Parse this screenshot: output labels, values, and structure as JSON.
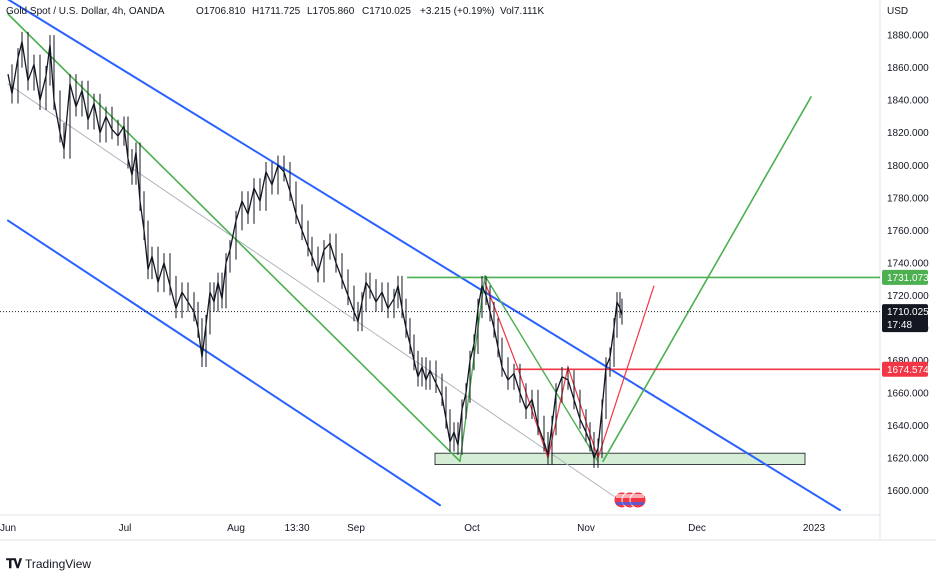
{
  "header": {
    "symbol": "Gold Spot / U.S. Dollar, 4h, OANDA",
    "open": "O1706.810",
    "high": "H1711.725",
    "low": "L1705.860",
    "close": "C1710.025",
    "change": "+3.215 (+0.19%)",
    "volume": "Vol7.111K",
    "currency": "USD"
  },
  "footer": {
    "brand": "TradingView"
  },
  "colors": {
    "candle": "#131722",
    "blue_channel": "#2962ff",
    "green_channel": "#4caf50",
    "red_line": "#f23645",
    "support_zone": "#d5ecd5",
    "dotted_price": "#131722"
  },
  "chart_data": {
    "type": "line",
    "title": "Gold Spot / U.S. Dollar, 4h, OANDA",
    "ylim": [
      1585,
      1893
    ],
    "xlim": [
      0,
      835
    ],
    "y_ticks": [
      1600,
      1620,
      1640,
      1660,
      1680,
      1700,
      1720,
      1740,
      1760,
      1780,
      1800,
      1820,
      1840,
      1860,
      1880
    ],
    "y_tick_labels": [
      "1600.000",
      "1620.000",
      "1640.000",
      "1660.000",
      "1680.000",
      "1700.000",
      "1720.000",
      "1740.000",
      "1760.000",
      "1780.000",
      "1800.000",
      "1820.000",
      "1840.000",
      "1860.000",
      "1880.000"
    ],
    "x_ticks": [
      {
        "x": 8,
        "label": "Jun"
      },
      {
        "x": 125,
        "label": "Jul"
      },
      {
        "x": 236,
        "label": "Aug"
      },
      {
        "x": 297,
        "label": "13:30"
      },
      {
        "x": 356,
        "label": "Sep"
      },
      {
        "x": 472,
        "label": "Oct"
      },
      {
        "x": 586,
        "label": "Nov"
      },
      {
        "x": 697,
        "label": "Dec"
      },
      {
        "x": 814,
        "label": "2023"
      }
    ],
    "price_series": {
      "name": "XAUUSD",
      "points": [
        [
          8,
          1856
        ],
        [
          12,
          1844
        ],
        [
          18,
          1866
        ],
        [
          22,
          1876
        ],
        [
          28,
          1852
        ],
        [
          34,
          1862
        ],
        [
          40,
          1840
        ],
        [
          46,
          1855
        ],
        [
          50,
          1874
        ],
        [
          54,
          1840
        ],
        [
          60,
          1820
        ],
        [
          64,
          1810
        ],
        [
          70,
          1850
        ],
        [
          76,
          1836
        ],
        [
          82,
          1846
        ],
        [
          88,
          1828
        ],
        [
          94,
          1838
        ],
        [
          100,
          1820
        ],
        [
          106,
          1830
        ],
        [
          112,
          1822
        ],
        [
          118,
          1818
        ],
        [
          124,
          1824
        ],
        [
          128,
          1804
        ],
        [
          132,
          1794
        ],
        [
          136,
          1808
        ],
        [
          140,
          1778
        ],
        [
          144,
          1760
        ],
        [
          148,
          1736
        ],
        [
          152,
          1744
        ],
        [
          158,
          1728
        ],
        [
          164,
          1740
        ],
        [
          170,
          1726
        ],
        [
          176,
          1712
        ],
        [
          182,
          1722
        ],
        [
          188,
          1716
        ],
        [
          194,
          1710
        ],
        [
          198,
          1700
        ],
        [
          202,
          1682
        ],
        [
          206,
          1702
        ],
        [
          210,
          1722
        ],
        [
          214,
          1716
        ],
        [
          218,
          1728
        ],
        [
          222,
          1718
        ],
        [
          226,
          1740
        ],
        [
          230,
          1748
        ],
        [
          236,
          1766
        ],
        [
          242,
          1778
        ],
        [
          248,
          1770
        ],
        [
          254,
          1786
        ],
        [
          260,
          1778
        ],
        [
          266,
          1796
        ],
        [
          272,
          1788
        ],
        [
          278,
          1800
        ],
        [
          284,
          1796
        ],
        [
          290,
          1784
        ],
        [
          296,
          1770
        ],
        [
          302,
          1760
        ],
        [
          308,
          1750
        ],
        [
          312,
          1744
        ],
        [
          318,
          1734
        ],
        [
          324,
          1748
        ],
        [
          330,
          1752
        ],
        [
          336,
          1740
        ],
        [
          342,
          1730
        ],
        [
          348,
          1720
        ],
        [
          354,
          1710
        ],
        [
          358,
          1704
        ],
        [
          362,
          1716
        ],
        [
          366,
          1728
        ],
        [
          370,
          1724
        ],
        [
          376,
          1716
        ],
        [
          382,
          1722
        ],
        [
          388,
          1712
        ],
        [
          394,
          1718
        ],
        [
          398,
          1726
        ],
        [
          402,
          1712
        ],
        [
          406,
          1700
        ],
        [
          410,
          1690
        ],
        [
          414,
          1680
        ],
        [
          418,
          1670
        ],
        [
          422,
          1676
        ],
        [
          426,
          1668
        ],
        [
          430,
          1674
        ],
        [
          436,
          1666
        ],
        [
          442,
          1658
        ],
        [
          446,
          1644
        ],
        [
          450,
          1630
        ],
        [
          454,
          1636
        ],
        [
          458,
          1628
        ],
        [
          462,
          1650
        ],
        [
          466,
          1660
        ],
        [
          470,
          1680
        ],
        [
          474,
          1690
        ],
        [
          478,
          1712
        ],
        [
          482,
          1726
        ],
        [
          486,
          1720
        ],
        [
          490,
          1710
        ],
        [
          494,
          1700
        ],
        [
          498,
          1688
        ],
        [
          502,
          1676
        ],
        [
          508,
          1668
        ],
        [
          514,
          1672
        ],
        [
          520,
          1660
        ],
        [
          526,
          1650
        ],
        [
          532,
          1656
        ],
        [
          538,
          1640
        ],
        [
          544,
          1630
        ],
        [
          548,
          1622
        ],
        [
          552,
          1640
        ],
        [
          556,
          1660
        ],
        [
          562,
          1670
        ],
        [
          568,
          1668
        ],
        [
          574,
          1656
        ],
        [
          580,
          1644
        ],
        [
          586,
          1636
        ],
        [
          590,
          1630
        ],
        [
          594,
          1620
        ],
        [
          598,
          1626
        ],
        [
          602,
          1650
        ],
        [
          606,
          1676
        ],
        [
          610,
          1682
        ],
        [
          614,
          1700
        ],
        [
          617,
          1716
        ],
        [
          620,
          1712
        ],
        [
          622,
          1708
        ]
      ]
    },
    "drawings": {
      "blue_channel_upper": [
        [
          8,
          1902
        ],
        [
          840,
          1588
        ]
      ],
      "blue_channel_lower": [
        [
          8,
          1766
        ],
        [
          440,
          1591
        ]
      ],
      "green_channel_upper": [
        [
          8,
          1893
        ],
        [
          460,
          1618
        ]
      ],
      "gray_midline": [
        [
          8,
          1850
        ],
        [
          620,
          1594
        ]
      ],
      "green_up_left": [
        [
          460,
          1618
        ],
        [
          485,
          1732
        ]
      ],
      "green_down_right": [
        [
          485,
          1732
        ],
        [
          598,
          1618
        ]
      ],
      "green_projection": [
        [
          603,
          1618
        ],
        [
          811,
          1842
        ]
      ],
      "red_zigzag": [
        [
          485,
          1728
        ],
        [
          518,
          1675
        ],
        [
          548,
          1620
        ],
        [
          568,
          1676
        ],
        [
          598,
          1620
        ],
        [
          654,
          1726
        ]
      ],
      "resistance_green_level": 1731.073,
      "resistance_red_level": 1674.574,
      "current_price": 1710.025,
      "support_zone": {
        "x_from": 435,
        "x_to": 805,
        "y_from": 1616,
        "y_to": 1623
      }
    },
    "price_labels": {
      "green": "1731.073",
      "current": "1710.025",
      "countdown": "17:48",
      "red": "1674.574"
    }
  }
}
